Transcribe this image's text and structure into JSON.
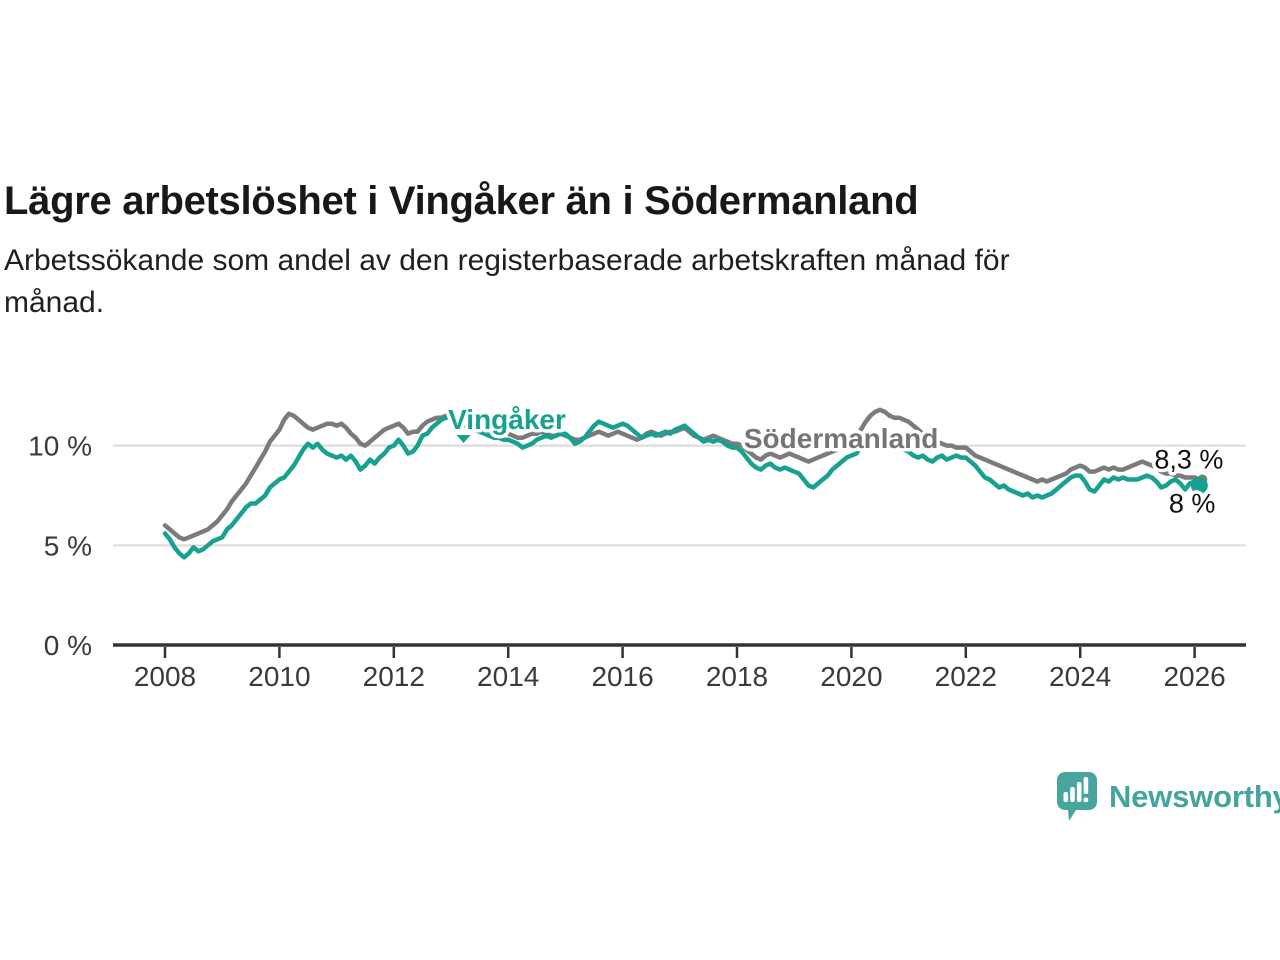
{
  "header": {
    "title": "Lägre arbetslöshet i Vingåker än i Södermanland",
    "subtitle_lines": [
      "Arbetssökande som andel av den registerbaserade arbetskraften månad för",
      "månad."
    ]
  },
  "footer": {
    "brand": "Newsworthy",
    "logo_icon": "newsworthy-speech-bubble-bar-chart-icon",
    "logo_color": "#48a59e"
  },
  "colors": {
    "background": "#ffffff",
    "title_text": "#181818",
    "axis_text": "#3a3a3a",
    "gridline": "#dadada",
    "axis_line": "#333333",
    "vingaker_teal": "#16a191",
    "sodermanland_gray": "#7b7b7b",
    "end_label_text": "#111111"
  },
  "chart_data": {
    "type": "line",
    "title": "Lägre arbetslöshet i Vingåker än i Södermanland",
    "subtitle": "Arbetssökande som andel av den registerbaserade arbetskraften månad för månad.",
    "x_unit": "monthly",
    "x_start_year": 2008,
    "x_end_year_frac": 2026.083,
    "xlim": [
      2007.1,
      2026.9
    ],
    "ylim": [
      0,
      12.6
    ],
    "grid": "horizontal",
    "x_ticks": [
      2008,
      2010,
      2012,
      2014,
      2016,
      2018,
      2020,
      2022,
      2024,
      2026
    ],
    "x_tick_labels": [
      "2008",
      "2010",
      "2012",
      "2014",
      "2016",
      "2018",
      "2020",
      "2022",
      "2024",
      "2026"
    ],
    "y_ticks": [
      0,
      5,
      10
    ],
    "y_tick_labels": [
      "0 %",
      "5 %",
      "10 %"
    ],
    "legend_position": "inline-labels",
    "series": [
      {
        "name": "Södermanland",
        "color": "#7b7b7b",
        "label_color": "#757575",
        "end_label": "8,3 %",
        "end_value": 8.3,
        "values": [
          6.0,
          5.8,
          5.6,
          5.4,
          5.3,
          5.4,
          5.5,
          5.6,
          5.7,
          5.8,
          6.0,
          6.2,
          6.5,
          6.8,
          7.2,
          7.5,
          7.8,
          8.1,
          8.5,
          8.9,
          9.3,
          9.7,
          10.2,
          10.5,
          10.8,
          11.3,
          11.6,
          11.5,
          11.3,
          11.1,
          10.9,
          10.8,
          10.9,
          11.0,
          11.1,
          11.1,
          11.0,
          11.1,
          10.9,
          10.6,
          10.4,
          10.1,
          10.0,
          10.2,
          10.4,
          10.6,
          10.8,
          10.9,
          11.0,
          11.1,
          10.9,
          10.6,
          10.7,
          10.7,
          11.0,
          11.2,
          11.3,
          11.4,
          11.4,
          11.5,
          11.5,
          11.4,
          11.3,
          11.2,
          11.0,
          10.9,
          10.8,
          10.8,
          10.7,
          10.7,
          10.6,
          10.6,
          10.6,
          10.5,
          10.4,
          10.4,
          10.5,
          10.6,
          10.6,
          10.7,
          10.6,
          10.5,
          10.5,
          10.6,
          10.5,
          10.4,
          10.3,
          10.3,
          10.4,
          10.5,
          10.6,
          10.7,
          10.6,
          10.5,
          10.6,
          10.7,
          10.6,
          10.5,
          10.4,
          10.3,
          10.4,
          10.6,
          10.7,
          10.6,
          10.5,
          10.6,
          10.7,
          10.7,
          10.8,
          10.9,
          10.7,
          10.5,
          10.4,
          10.3,
          10.4,
          10.5,
          10.4,
          10.3,
          10.2,
          10.1,
          10.1,
          10.0,
          9.8,
          9.6,
          9.4,
          9.3,
          9.5,
          9.6,
          9.5,
          9.4,
          9.5,
          9.6,
          9.5,
          9.4,
          9.3,
          9.2,
          9.3,
          9.4,
          9.5,
          9.6,
          9.7,
          9.8,
          9.9,
          10.0,
          10.2,
          10.4,
          10.8,
          11.2,
          11.5,
          11.7,
          11.8,
          11.7,
          11.5,
          11.4,
          11.4,
          11.3,
          11.2,
          11.0,
          10.8,
          10.6,
          10.4,
          10.3,
          10.2,
          10.1,
          10.0,
          10.0,
          9.9,
          9.9,
          9.9,
          9.7,
          9.5,
          9.4,
          9.3,
          9.2,
          9.1,
          9.0,
          8.9,
          8.8,
          8.7,
          8.6,
          8.5,
          8.4,
          8.3,
          8.2,
          8.3,
          8.2,
          8.3,
          8.4,
          8.5,
          8.6,
          8.8,
          8.9,
          9.0,
          8.9,
          8.7,
          8.7,
          8.8,
          8.9,
          8.8,
          8.9,
          8.8,
          8.8,
          8.9,
          9.0,
          9.1,
          9.2,
          9.1,
          9.0,
          8.9,
          8.7,
          8.6,
          8.6,
          8.5,
          8.5,
          8.4,
          8.4,
          8.4,
          8.3
        ]
      },
      {
        "name": "Vingåker",
        "color": "#16a191",
        "label_color": "#16a191",
        "end_label": "8 %",
        "end_value": 8.0,
        "values": [
          5.6,
          5.3,
          4.9,
          4.6,
          4.4,
          4.6,
          4.9,
          4.7,
          4.8,
          5.0,
          5.2,
          5.3,
          5.4,
          5.8,
          6.0,
          6.3,
          6.6,
          6.9,
          7.1,
          7.1,
          7.3,
          7.5,
          7.9,
          8.1,
          8.3,
          8.4,
          8.7,
          9.0,
          9.4,
          9.8,
          10.1,
          9.9,
          10.1,
          9.8,
          9.6,
          9.5,
          9.4,
          9.5,
          9.3,
          9.5,
          9.2,
          8.8,
          9.0,
          9.3,
          9.1,
          9.4,
          9.6,
          9.9,
          10.0,
          10.3,
          10.0,
          9.6,
          9.7,
          10.0,
          10.5,
          10.6,
          10.9,
          11.1,
          11.3,
          11.4,
          11.5,
          11.4,
          11.2,
          11.0,
          10.9,
          10.8,
          10.7,
          10.6,
          10.5,
          10.4,
          10.4,
          10.3,
          10.3,
          10.2,
          10.1,
          9.9,
          10.0,
          10.1,
          10.3,
          10.4,
          10.5,
          10.4,
          10.5,
          10.6,
          10.6,
          10.4,
          10.1,
          10.2,
          10.4,
          10.7,
          11.0,
          11.2,
          11.1,
          11.0,
          10.9,
          11.0,
          11.1,
          11.0,
          10.8,
          10.6,
          10.4,
          10.5,
          10.6,
          10.5,
          10.6,
          10.7,
          10.6,
          10.8,
          10.9,
          11.0,
          10.8,
          10.6,
          10.4,
          10.2,
          10.3,
          10.2,
          10.3,
          10.2,
          10.0,
          9.9,
          9.9,
          9.7,
          9.4,
          9.1,
          8.9,
          8.8,
          9.0,
          9.1,
          8.9,
          8.8,
          8.9,
          8.8,
          8.7,
          8.6,
          8.3,
          8.0,
          7.9,
          8.1,
          8.3,
          8.5,
          8.8,
          9.0,
          9.2,
          9.4,
          9.5,
          9.6,
          9.9,
          10.3,
          10.5,
          10.4,
          10.5,
          10.3,
          10.2,
          10.1,
          9.9,
          9.8,
          9.7,
          9.5,
          9.4,
          9.5,
          9.3,
          9.2,
          9.4,
          9.5,
          9.3,
          9.4,
          9.5,
          9.4,
          9.4,
          9.2,
          9.0,
          8.7,
          8.4,
          8.3,
          8.1,
          7.9,
          8.0,
          7.8,
          7.7,
          7.6,
          7.5,
          7.6,
          7.4,
          7.5,
          7.4,
          7.5,
          7.6,
          7.8,
          8.0,
          8.2,
          8.4,
          8.5,
          8.5,
          8.2,
          7.8,
          7.7,
          8.0,
          8.3,
          8.2,
          8.4,
          8.3,
          8.4,
          8.3,
          8.3,
          8.3,
          8.4,
          8.5,
          8.4,
          8.2,
          7.9,
          8.0,
          8.2,
          8.3,
          8.1,
          7.8,
          8.1,
          8.2,
          8.0
        ]
      }
    ]
  }
}
